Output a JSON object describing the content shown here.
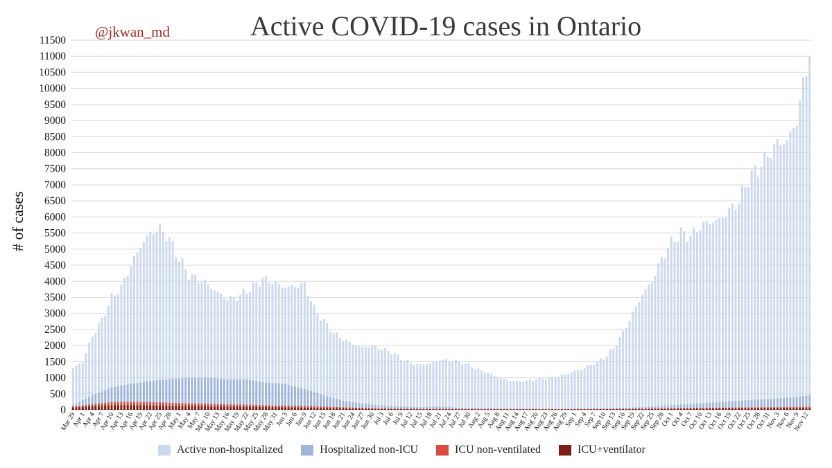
{
  "handle": "@jkwan_md",
  "chart_data": {
    "type": "bar",
    "stacked": true,
    "title": "Active COVID-19 cases in Ontario",
    "ylabel": "# of cases",
    "xlabel": "",
    "ylim": [
      0,
      11500
    ],
    "yticks": [
      0,
      500,
      1000,
      1500,
      2000,
      2500,
      3000,
      3500,
      4000,
      4500,
      5000,
      5500,
      6000,
      6500,
      7000,
      7500,
      8000,
      8500,
      9000,
      9500,
      10000,
      10500,
      11000,
      11500
    ],
    "grid": true,
    "legend_position": "bottom",
    "start_date": "2020-03-29",
    "xtick_labels": [
      "Mar 29",
      "Apr 1",
      "Apr 4",
      "Apr 7",
      "Apr 10",
      "Apr 13",
      "Apr 16",
      "Apr 19",
      "Apr 22",
      "Apr 25",
      "Apr 28",
      "May 1",
      "May 4",
      "May 7",
      "May 10",
      "May 13",
      "May 16",
      "May 19",
      "May 22",
      "May 25",
      "May 28",
      "May 31",
      "Jun 3",
      "Jun 6",
      "Jun 9",
      "Jun 12",
      "Jun 15",
      "Jun 18",
      "Jun 21",
      "Jun 24",
      "Jun 27",
      "Jun 30",
      "Jul 3",
      "Jul 6",
      "Jul 9",
      "Jul 12",
      "Jul 15",
      "Jul 18",
      "Jul 21",
      "Jul 24",
      "Jul 27",
      "Jul 30",
      "Aug 2",
      "Aug 5",
      "Aug 8",
      "Aug 11",
      "Aug 14",
      "Aug 17",
      "Aug 20",
      "Aug 23",
      "Aug 26",
      "Aug 29",
      "Sep 1",
      "Sep 4",
      "Sep 7",
      "Sep 10",
      "Sep 13",
      "Sep 16",
      "Sep 19",
      "Sep 22",
      "Sep 25",
      "Sep 28",
      "Oct 1",
      "Oct 4",
      "Oct 7",
      "Oct 10",
      "Oct 13",
      "Oct 16",
      "Oct 19",
      "Oct 22",
      "Oct 25",
      "Oct 28",
      "Oct 31",
      "Nov 3",
      "Nov 6",
      "Nov 9",
      "Nov 12"
    ],
    "total_keypoints": [
      [
        0,
        1300
      ],
      [
        3,
        1500
      ],
      [
        6,
        2300
      ],
      [
        9,
        2800
      ],
      [
        12,
        3500
      ],
      [
        15,
        3800
      ],
      [
        18,
        4500
      ],
      [
        21,
        5100
      ],
      [
        24,
        5500
      ],
      [
        27,
        5650
      ],
      [
        30,
        5300
      ],
      [
        33,
        4700
      ],
      [
        36,
        4200
      ],
      [
        39,
        4050
      ],
      [
        42,
        3900
      ],
      [
        45,
        3650
      ],
      [
        48,
        3450
      ],
      [
        51,
        3500
      ],
      [
        54,
        3700
      ],
      [
        57,
        3900
      ],
      [
        59,
        4080
      ],
      [
        63,
        3950
      ],
      [
        66,
        3800
      ],
      [
        69,
        3850
      ],
      [
        72,
        3900
      ],
      [
        75,
        3150
      ],
      [
        78,
        2750
      ],
      [
        81,
        2400
      ],
      [
        84,
        2200
      ],
      [
        87,
        2050
      ],
      [
        90,
        1950
      ],
      [
        93,
        2000
      ],
      [
        96,
        1900
      ],
      [
        99,
        1800
      ],
      [
        102,
        1600
      ],
      [
        105,
        1450
      ],
      [
        108,
        1400
      ],
      [
        111,
        1450
      ],
      [
        114,
        1550
      ],
      [
        117,
        1540
      ],
      [
        120,
        1500
      ],
      [
        123,
        1400
      ],
      [
        126,
        1250
      ],
      [
        129,
        1150
      ],
      [
        132,
        1000
      ],
      [
        135,
        930
      ],
      [
        138,
        880
      ],
      [
        141,
        900
      ],
      [
        144,
        950
      ],
      [
        147,
        980
      ],
      [
        150,
        1020
      ],
      [
        153,
        1100
      ],
      [
        156,
        1200
      ],
      [
        159,
        1300
      ],
      [
        162,
        1450
      ],
      [
        165,
        1600
      ],
      [
        168,
        1900
      ],
      [
        171,
        2400
      ],
      [
        174,
        3000
      ],
      [
        177,
        3600
      ],
      [
        180,
        4000
      ],
      [
        183,
        4700
      ],
      [
        186,
        5200
      ],
      [
        189,
        5500
      ],
      [
        192,
        5400
      ],
      [
        195,
        5700
      ],
      [
        198,
        5850
      ],
      [
        201,
        5900
      ],
      [
        204,
        6200
      ],
      [
        207,
        6500
      ],
      [
        210,
        7200
      ],
      [
        213,
        7500
      ],
      [
        216,
        7900
      ],
      [
        219,
        8300
      ],
      [
        222,
        8350
      ],
      [
        225,
        9000
      ],
      [
        227,
        10100
      ],
      [
        228,
        10600
      ],
      [
        229,
        11250
      ]
    ],
    "hosp_keypoints": [
      [
        0,
        150
      ],
      [
        6,
        450
      ],
      [
        12,
        700
      ],
      [
        18,
        800
      ],
      [
        24,
        900
      ],
      [
        30,
        950
      ],
      [
        36,
        1000
      ],
      [
        42,
        1000
      ],
      [
        48,
        950
      ],
      [
        54,
        950
      ],
      [
        60,
        850
      ],
      [
        66,
        800
      ],
      [
        72,
        650
      ],
      [
        78,
        450
      ],
      [
        84,
        280
      ],
      [
        90,
        200
      ],
      [
        96,
        130
      ],
      [
        102,
        100
      ],
      [
        108,
        80
      ],
      [
        114,
        110
      ],
      [
        120,
        60
      ],
      [
        132,
        40
      ],
      [
        150,
        30
      ],
      [
        168,
        40
      ],
      [
        180,
        100
      ],
      [
        186,
        150
      ],
      [
        192,
        180
      ],
      [
        198,
        220
      ],
      [
        204,
        260
      ],
      [
        210,
        300
      ],
      [
        216,
        330
      ],
      [
        222,
        380
      ],
      [
        229,
        450
      ]
    ],
    "icu_keypoints": [
      [
        0,
        100
      ],
      [
        6,
        170
      ],
      [
        12,
        240
      ],
      [
        18,
        250
      ],
      [
        24,
        240
      ],
      [
        30,
        220
      ],
      [
        36,
        200
      ],
      [
        42,
        190
      ],
      [
        48,
        170
      ],
      [
        54,
        160
      ],
      [
        60,
        140
      ],
      [
        66,
        130
      ],
      [
        72,
        120
      ],
      [
        78,
        100
      ],
      [
        84,
        80
      ],
      [
        90,
        60
      ],
      [
        96,
        40
      ],
      [
        108,
        30
      ],
      [
        120,
        25
      ],
      [
        150,
        20
      ],
      [
        168,
        30
      ],
      [
        180,
        40
      ],
      [
        192,
        55
      ],
      [
        204,
        70
      ],
      [
        216,
        80
      ],
      [
        229,
        95
      ]
    ],
    "vent_keypoints": [
      [
        0,
        70
      ],
      [
        6,
        110
      ],
      [
        12,
        140
      ],
      [
        18,
        145
      ],
      [
        24,
        135
      ],
      [
        30,
        120
      ],
      [
        36,
        115
      ],
      [
        42,
        110
      ],
      [
        48,
        100
      ],
      [
        54,
        95
      ],
      [
        60,
        85
      ],
      [
        66,
        75
      ],
      [
        72,
        65
      ],
      [
        78,
        55
      ],
      [
        84,
        45
      ],
      [
        90,
        35
      ],
      [
        96,
        25
      ],
      [
        108,
        18
      ],
      [
        120,
        15
      ],
      [
        150,
        12
      ],
      [
        168,
        18
      ],
      [
        180,
        25
      ],
      [
        192,
        35
      ],
      [
        204,
        45
      ],
      [
        216,
        55
      ],
      [
        229,
        60
      ]
    ],
    "series": [
      {
        "name": "Active non-hospitalized",
        "color": "#cbd9ee"
      },
      {
        "name": "Hospitalized non-ICU",
        "color": "#9fb4da"
      },
      {
        "name": "ICU non-ventilated",
        "color": "#d94c3d"
      },
      {
        "name": "ICU+ventilator",
        "color": "#7b1d12"
      }
    ]
  }
}
